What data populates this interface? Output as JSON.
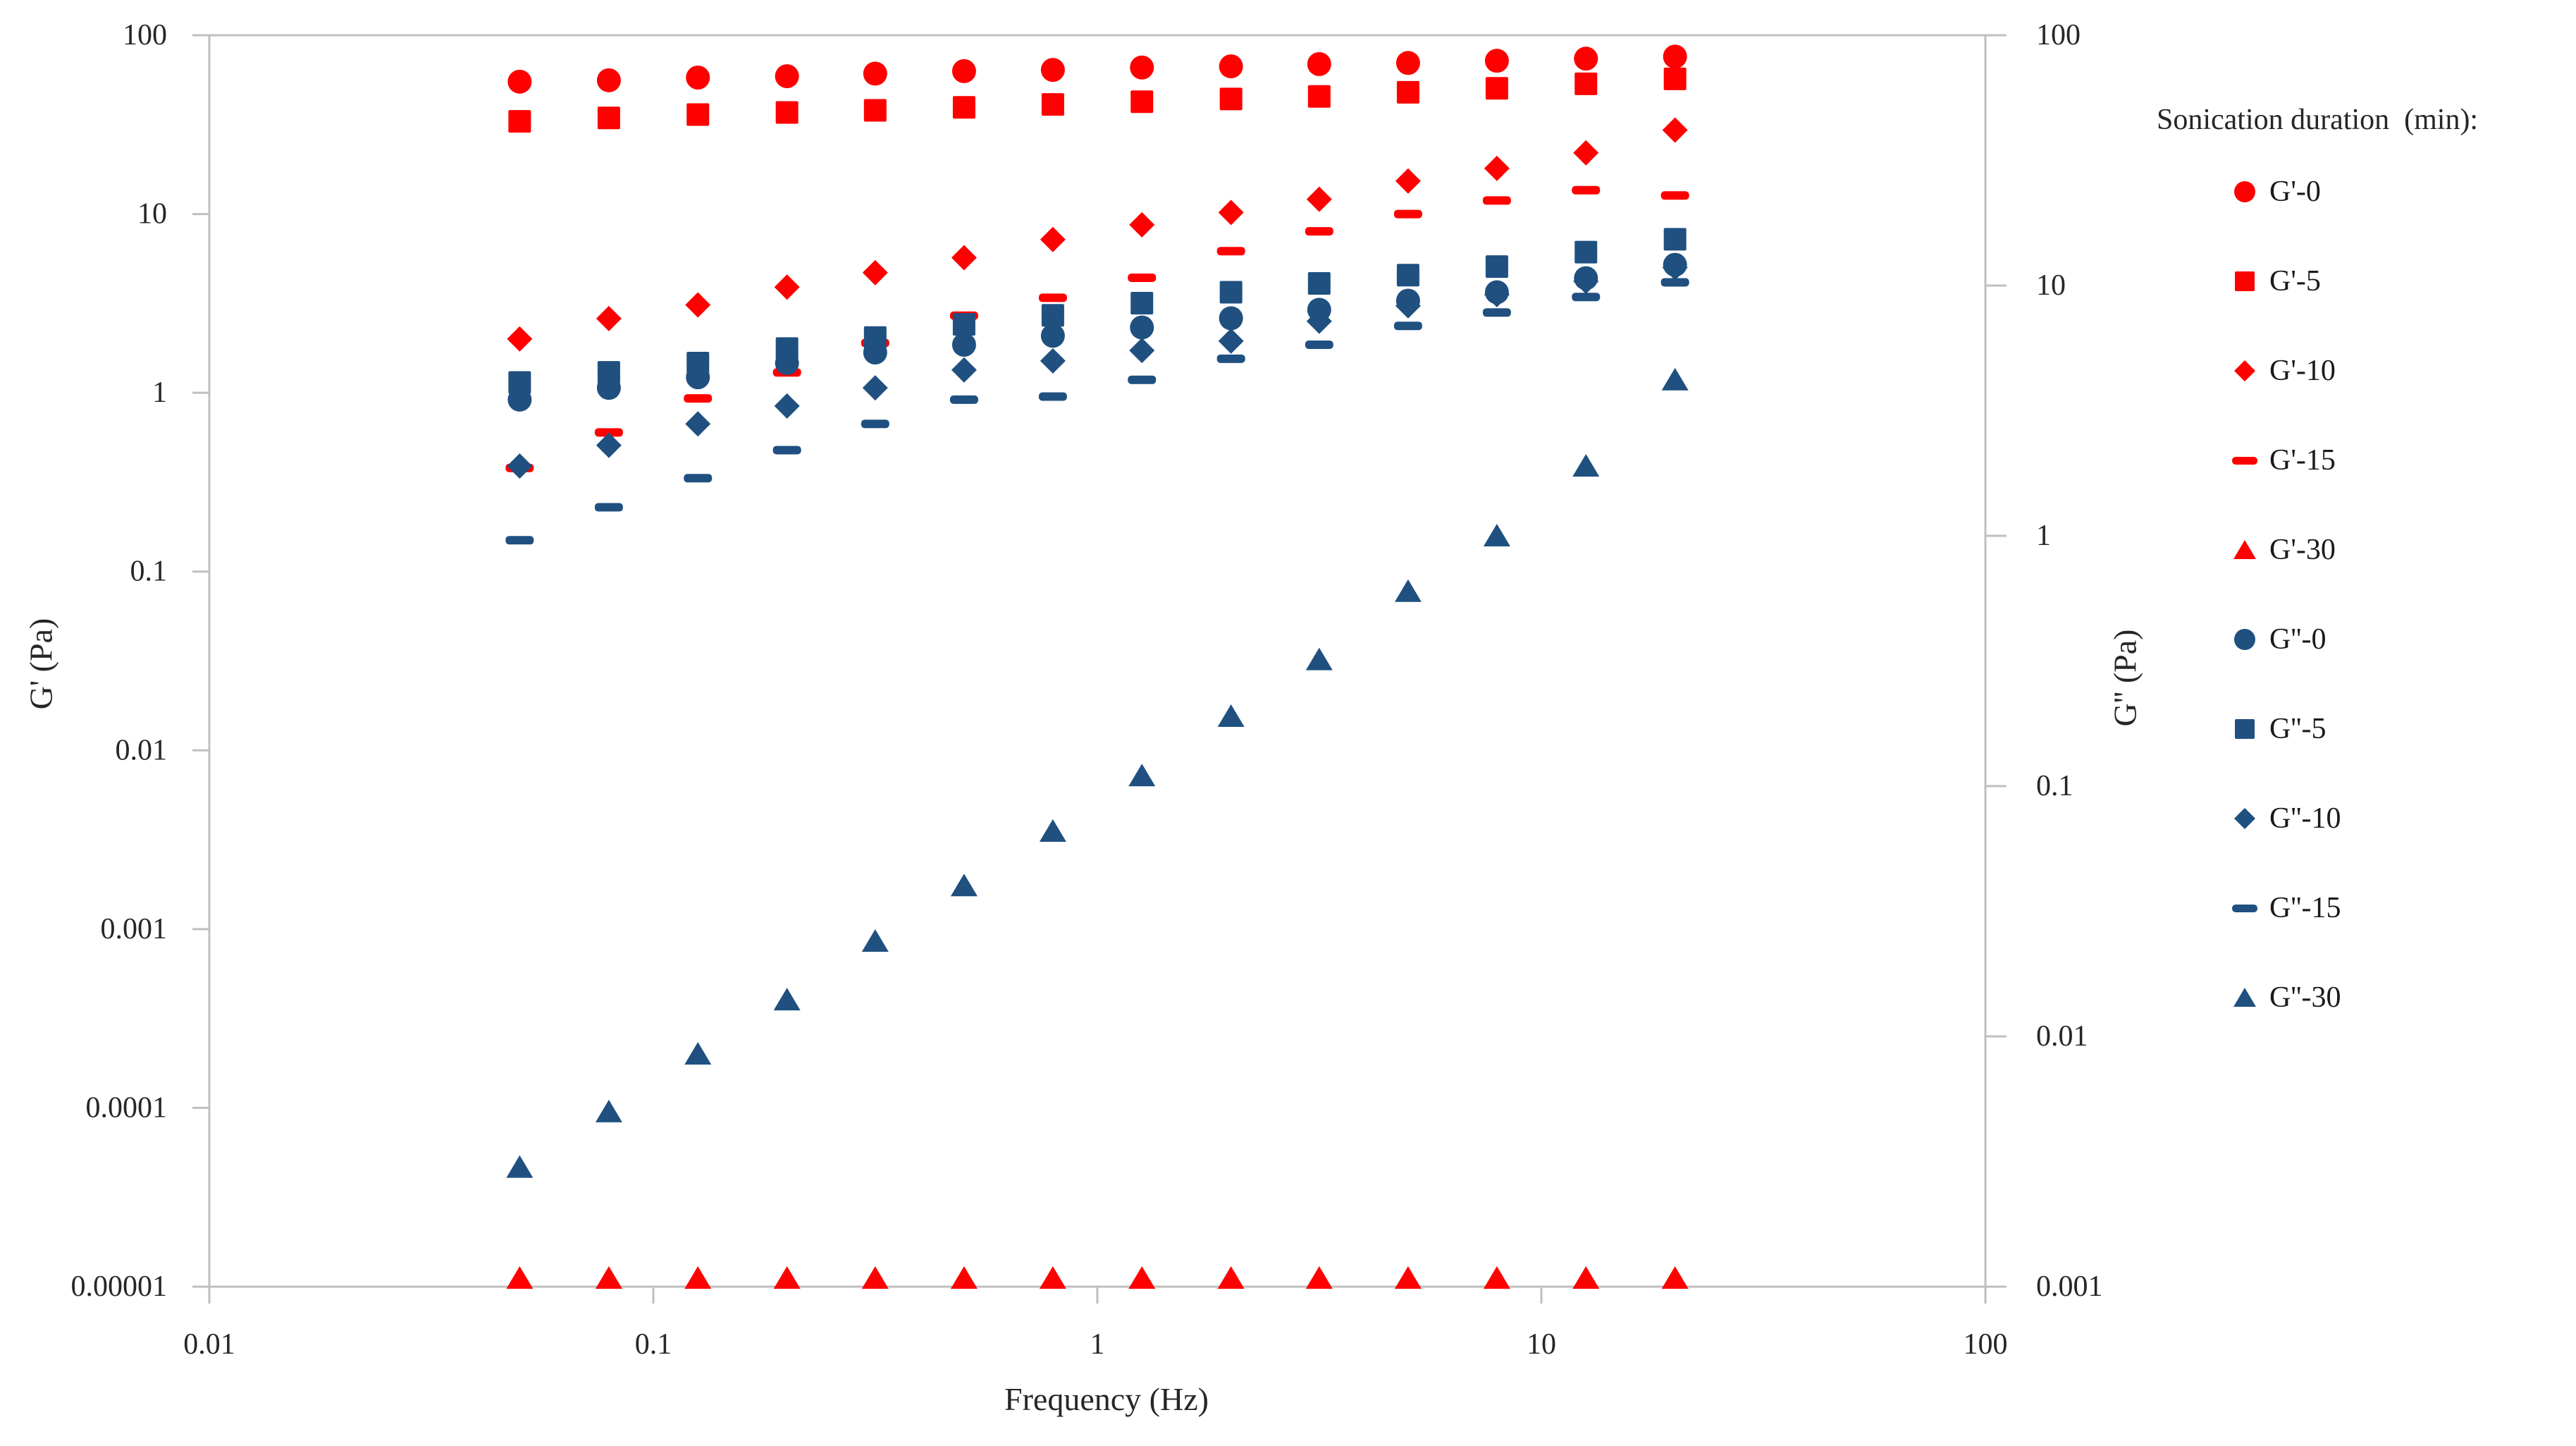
{
  "figure": {
    "background": "#FFFFFF",
    "axis_color": "#BFBFBF",
    "text_color": "#262626"
  },
  "legend": {
    "title": "Sonication duration  (min):",
    "items": [
      {
        "label": "G'-0",
        "marker": "circle",
        "color": "#FE0000"
      },
      {
        "label": "G'-5",
        "marker": "square",
        "color": "#FE0000"
      },
      {
        "label": "G'-10",
        "marker": "diamond",
        "color": "#FE0000"
      },
      {
        "label": "G'-15",
        "marker": "dash",
        "color": "#FE0000"
      },
      {
        "label": "G'-30",
        "marker": "triangle",
        "color": "#FE0000"
      },
      {
        "label": "G''-0",
        "marker": "circle",
        "color": "#1F5080"
      },
      {
        "label": "G''-5",
        "marker": "square",
        "color": "#1F5080"
      },
      {
        "label": "G''-10",
        "marker": "diamond",
        "color": "#1F5080"
      },
      {
        "label": "G''-15",
        "marker": "dash",
        "color": "#1F5080"
      },
      {
        "label": "G''-30",
        "marker": "triangle",
        "color": "#1F5080"
      }
    ]
  },
  "axis_labels": {
    "x": "Frequency (Hz)",
    "y_left": "G' (Pa)",
    "y_right": "G'' (Pa)"
  },
  "chart_data": {
    "type": "scatter",
    "title": "",
    "xlabel": "Frequency (Hz)",
    "ylabel_left": "G' (Pa)",
    "ylabel_right": "G'' (Pa)",
    "x_scale": "log",
    "y_scale": "log",
    "grid": false,
    "legend_position": "right",
    "x_range": [
      0.01,
      100
    ],
    "y_left_range": [
      1e-05,
      100
    ],
    "y_right_range": [
      0.001,
      100
    ],
    "x_ticks": [
      "0.01",
      "0.1",
      "1",
      "10",
      "100"
    ],
    "y_left_ticks": [
      "100",
      "10",
      "1",
      "0.1",
      "0.01",
      "0.001",
      "0.0001",
      "0.00001"
    ],
    "y_right_ticks": [
      "100",
      "10",
      "1",
      "0.1",
      "0.01",
      "0.001"
    ],
    "x": [
      0.05,
      0.0794,
      0.126,
      0.2,
      0.316,
      0.501,
      0.794,
      1.26,
      2.0,
      3.16,
      5.01,
      7.94,
      12.6,
      20.0
    ],
    "series": [
      {
        "name": "G'-0",
        "axis": "left",
        "marker": "circle",
        "color": "#FE0000",
        "values": [
          55,
          56,
          58,
          59,
          61,
          63,
          64,
          66,
          67,
          69,
          70,
          72,
          74,
          76
        ]
      },
      {
        "name": "G'-5",
        "axis": "left",
        "marker": "square",
        "color": "#FE0000",
        "values": [
          33,
          34.5,
          36,
          37,
          38,
          39.5,
          41,
          42.5,
          44,
          45.5,
          48,
          50.5,
          53.5,
          57
        ]
      },
      {
        "name": "G'-10",
        "axis": "left",
        "marker": "diamond",
        "color": "#FE0000",
        "values": [
          2.0,
          2.6,
          3.1,
          3.9,
          4.7,
          5.7,
          7.2,
          8.7,
          10.2,
          12.1,
          15.3,
          18,
          22,
          29.5
        ]
      },
      {
        "name": "G'-15",
        "axis": "left",
        "marker": "dash",
        "color": "#FE0000",
        "values": [
          0.38,
          0.6,
          0.93,
          1.3,
          1.9,
          2.7,
          3.4,
          4.4,
          6.2,
          8.0,
          10.0,
          11.9,
          13.6,
          12.7
        ]
      },
      {
        "name": "G'-30",
        "axis": "left",
        "marker": "triangle",
        "color": "#FE0000",
        "values": [
          1e-05,
          1e-05,
          1e-05,
          1e-05,
          1e-05,
          1e-05,
          1e-05,
          1e-05,
          1e-05,
          1e-05,
          1e-05,
          1e-05,
          1e-05,
          1e-05
        ]
      },
      {
        "name": "G''-0",
        "axis": "right",
        "marker": "circle",
        "color": "#1F5080",
        "values": [
          3.5,
          3.9,
          4.3,
          4.9,
          5.4,
          5.8,
          6.3,
          6.8,
          7.4,
          8.0,
          8.7,
          9.4,
          10.7,
          12.1
        ]
      },
      {
        "name": "G''-5",
        "axis": "right",
        "marker": "square",
        "color": "#1F5080",
        "values": [
          4.1,
          4.5,
          4.9,
          5.6,
          6.2,
          7.0,
          7.6,
          8.5,
          9.4,
          10.2,
          11.0,
          11.9,
          13.6,
          15.3
        ]
      },
      {
        "name": "G''-10",
        "axis": "right",
        "marker": "diamond",
        "color": "#1F5080",
        "values": [
          1.9,
          2.3,
          2.8,
          3.3,
          3.9,
          4.6,
          5.0,
          5.5,
          6.0,
          7.2,
          8.3,
          9.2,
          10.4,
          11.8
        ]
      },
      {
        "name": "G''-15",
        "axis": "right",
        "marker": "dash",
        "color": "#1F5080",
        "values": [
          0.96,
          1.3,
          1.7,
          2.2,
          2.8,
          3.5,
          3.6,
          4.2,
          5.1,
          5.8,
          6.9,
          7.8,
          9.0,
          10.3
        ]
      },
      {
        "name": "G''-30",
        "axis": "right",
        "marker": "triangle",
        "color": "#1F5080",
        "values": [
          0.003,
          0.005,
          0.0085,
          0.014,
          0.024,
          0.04,
          0.066,
          0.11,
          0.19,
          0.32,
          0.6,
          1.0,
          1.9,
          4.2
        ]
      }
    ]
  }
}
